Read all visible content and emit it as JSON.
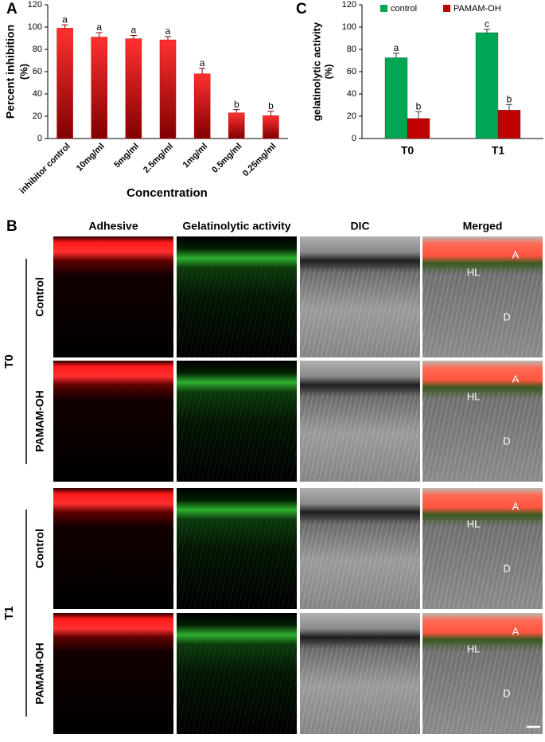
{
  "chart_data": [
    {
      "type": "bar",
      "panel_label": "A",
      "ylabel": "Percent inhibition",
      "ylabel_unit": "(%)",
      "xlabel": "Concentration",
      "categories": [
        "inhibitor control",
        "10mg/ml",
        "5mg/ml",
        "2.5mg/ml",
        "1mg/ml",
        "0.5mg/ml",
        "0.25mg/ml"
      ],
      "values": [
        99,
        91,
        89.5,
        88.5,
        58,
        23,
        20.5
      ],
      "errors": [
        3,
        4,
        3,
        3,
        5,
        3,
        4
      ],
      "annotations": [
        "a",
        "a",
        "a",
        "a",
        "a",
        "b",
        "b"
      ],
      "color": "#c00000",
      "ylim": [
        0,
        120
      ],
      "yticks": [
        0,
        20,
        40,
        60,
        80,
        100,
        120
      ]
    },
    {
      "type": "grouped_bar",
      "panel_label": "C",
      "ylabel": "gelatinolytic activity",
      "ylabel_unit": "(%)",
      "categories": [
        "T0",
        "T1"
      ],
      "series": [
        {
          "name": "control",
          "color": "#00a651",
          "values": [
            72.5,
            95
          ],
          "errors": [
            4,
            3
          ],
          "annotations": [
            "a",
            "c"
          ]
        },
        {
          "name": "PAMAM-OH",
          "color": "#c00000",
          "values": [
            18,
            25.5
          ],
          "errors": [
            6,
            5
          ],
          "annotations": [
            "b",
            "b"
          ]
        }
      ],
      "ylim": [
        0,
        120
      ],
      "yticks": [
        0,
        20,
        40,
        60,
        80,
        100,
        120
      ]
    }
  ],
  "image_panel": {
    "panel_label": "B",
    "columns": [
      "Adhesive",
      "Gelatinolytic activity",
      "DIC",
      "Merged"
    ],
    "groups": [
      {
        "label": "T0",
        "rows": [
          "Control",
          "PAMAM-OH"
        ]
      },
      {
        "label": "T1",
        "rows": [
          "Control",
          "PAMAM-OH"
        ]
      }
    ],
    "merged_labels": [
      "A",
      "HL",
      "D"
    ]
  }
}
